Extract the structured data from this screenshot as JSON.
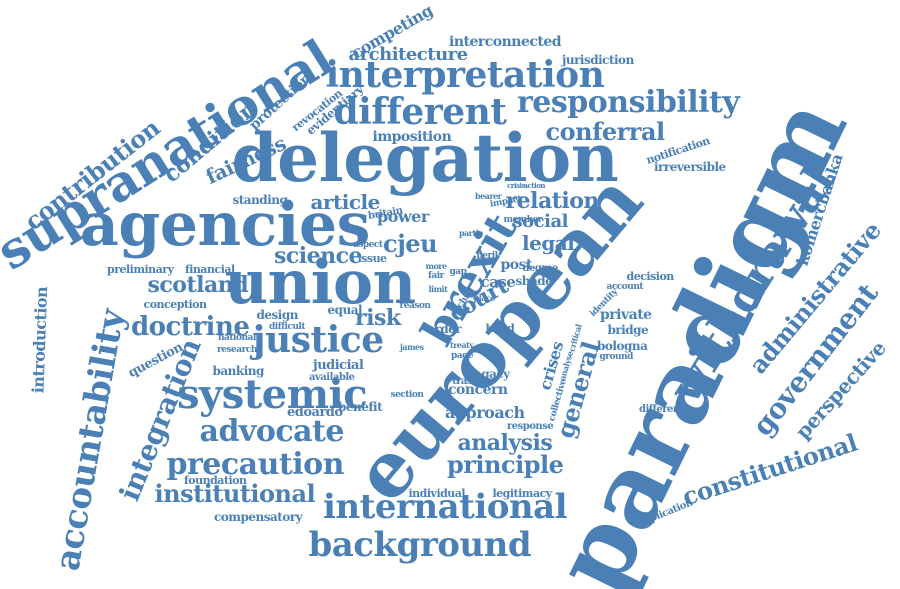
{
  "color": "#4a80b5",
  "words": [
    {
      "key": "paradigm",
      "text": "paradigm"
    },
    {
      "key": "european",
      "text": "european"
    },
    {
      "key": "delegation",
      "text": "delegation"
    },
    {
      "key": "supranational",
      "text": "supranational"
    },
    {
      "key": "agencies",
      "text": "agencies"
    },
    {
      "key": "union",
      "text": "union"
    },
    {
      "key": "brexit",
      "text": "brexit"
    },
    {
      "key": "withdrawal",
      "text": "withdrawal"
    },
    {
      "key": "accountability",
      "text": "accountability"
    },
    {
      "key": "interpretation",
      "text": "interpretation"
    },
    {
      "key": "systemic",
      "text": "systemic"
    },
    {
      "key": "justice",
      "text": "justice"
    },
    {
      "key": "different",
      "text": "different"
    },
    {
      "key": "responsibility",
      "text": "responsibility"
    },
    {
      "key": "background",
      "text": "background"
    },
    {
      "key": "international",
      "text": "international"
    },
    {
      "key": "advocate",
      "text": "advocate"
    },
    {
      "key": "precaution",
      "text": "precaution"
    },
    {
      "key": "integration",
      "text": "integration"
    },
    {
      "key": "government",
      "text": "government"
    },
    {
      "key": "constitutional",
      "text": "constitutional"
    },
    {
      "key": "administrative",
      "text": "administrative"
    },
    {
      "key": "contribution",
      "text": "contribution"
    },
    {
      "key": "condition",
      "text": "condition"
    },
    {
      "key": "doctrine",
      "text": "doctrine"
    },
    {
      "key": "institutional",
      "text": "institutional"
    },
    {
      "key": "general",
      "text": "general"
    },
    {
      "key": "principle",
      "text": "principle"
    },
    {
      "key": "analysis",
      "text": "analysis"
    },
    {
      "key": "conferral",
      "text": "conferral"
    },
    {
      "key": "cjeu",
      "text": "cjeu"
    },
    {
      "key": "scotland",
      "text": "scotland"
    },
    {
      "key": "science",
      "text": "science"
    },
    {
      "key": "perspective",
      "text": "perspective"
    },
    {
      "key": "komercbanka",
      "text": "komercbanka"
    },
    {
      "key": "court",
      "text": "court"
    },
    {
      "key": "risk",
      "text": "risk"
    },
    {
      "key": "article",
      "text": "article"
    },
    {
      "key": "relation",
      "text": "relation"
    },
    {
      "key": "social",
      "text": "social"
    },
    {
      "key": "legal",
      "text": "legal"
    },
    {
      "key": "fairness",
      "text": "fairness"
    },
    {
      "key": "introduction",
      "text": "introduction"
    },
    {
      "key": "architecture",
      "text": "architecture"
    },
    {
      "key": "competing",
      "text": "competing"
    },
    {
      "key": "interconnected",
      "text": "interconnected"
    },
    {
      "key": "protection",
      "text": "protection"
    },
    {
      "key": "revocation",
      "text": "revocation"
    },
    {
      "key": "evidentiary",
      "text": "evidentiary"
    },
    {
      "key": "jurisdiction",
      "text": "jurisdiction"
    },
    {
      "key": "imposition",
      "text": "imposition"
    },
    {
      "key": "notification",
      "text": "notification"
    },
    {
      "key": "irreversible",
      "text": "irreversible"
    },
    {
      "key": "standing",
      "text": "standing"
    },
    {
      "key": "power",
      "text": "power"
    },
    {
      "key": "britain",
      "text": "britain"
    },
    {
      "key": "issue",
      "text": "issue"
    },
    {
      "key": "aspect",
      "text": "aspect"
    },
    {
      "key": "preliminary",
      "text": "preliminary"
    },
    {
      "key": "financial",
      "text": "financial"
    },
    {
      "key": "conception",
      "text": "conception"
    },
    {
      "key": "design",
      "text": "design"
    },
    {
      "key": "equal",
      "text": "equal"
    },
    {
      "key": "difficult",
      "text": "difficult"
    },
    {
      "key": "reason",
      "text": "reason"
    },
    {
      "key": "national",
      "text": "national"
    },
    {
      "key": "research",
      "text": "research"
    },
    {
      "key": "question",
      "text": "question"
    },
    {
      "key": "banking",
      "text": "banking"
    },
    {
      "key": "available",
      "text": "available"
    },
    {
      "key": "judicial",
      "text": "judicial"
    },
    {
      "key": "edoardo",
      "text": "edoardo"
    },
    {
      "key": "section",
      "text": "section"
    },
    {
      "key": "benefit",
      "text": "benefit"
    },
    {
      "key": "foundation",
      "text": "foundation"
    },
    {
      "key": "compensatory",
      "text": "compensatory"
    },
    {
      "key": "individual",
      "text": "individual"
    },
    {
      "key": "legitimacy",
      "text": "legitimacy"
    },
    {
      "key": "crises",
      "text": "crises"
    },
    {
      "key": "collective",
      "text": "collective"
    },
    {
      "key": "concern",
      "text": "concern"
    },
    {
      "key": "trasta",
      "text": "trasta"
    },
    {
      "key": "approach",
      "text": "approach"
    },
    {
      "key": "response",
      "text": "response"
    },
    {
      "key": "legacy",
      "text": "legacy"
    },
    {
      "key": "page",
      "text": "page"
    },
    {
      "key": "treaty",
      "text": "treaty"
    },
    {
      "key": "order",
      "text": "order"
    },
    {
      "key": "hand",
      "text": "hand"
    },
    {
      "key": "james",
      "text": "james"
    },
    {
      "key": "case",
      "text": "case"
    },
    {
      "key": "shade",
      "text": "shade"
    },
    {
      "key": "post",
      "text": "post"
    },
    {
      "key": "degree",
      "text": "degree"
    },
    {
      "key": "gap",
      "text": "gap"
    },
    {
      "key": "peril",
      "text": "peril"
    },
    {
      "key": "partie",
      "text": "partie"
    },
    {
      "key": "bearer",
      "text": "bearer"
    },
    {
      "key": "impact",
      "text": "impact"
    },
    {
      "key": "private",
      "text": "private"
    },
    {
      "key": "bridge",
      "text": "bridge"
    },
    {
      "key": "bologna",
      "text": "bologna"
    },
    {
      "key": "ground",
      "text": "ground"
    },
    {
      "key": "decision",
      "text": "decision"
    },
    {
      "key": "account",
      "text": "account"
    },
    {
      "key": "identity",
      "text": "identity"
    },
    {
      "key": "difference",
      "text": "difference"
    },
    {
      "key": "implication",
      "text": "implication"
    },
    {
      "key": "crisis",
      "text": "crisis"
    },
    {
      "key": "action",
      "text": "action"
    },
    {
      "key": "member",
      "text": "member"
    },
    {
      "key": "more",
      "text": "more"
    },
    {
      "key": "fair",
      "text": "fair"
    },
    {
      "key": "limit",
      "text": "limit"
    },
    {
      "key": "place",
      "text": "place"
    },
    {
      "key": "child",
      "text": "child"
    },
    {
      "key": "analyse",
      "text": "analyse"
    },
    {
      "key": "critical",
      "text": "critical"
    }
  ]
}
